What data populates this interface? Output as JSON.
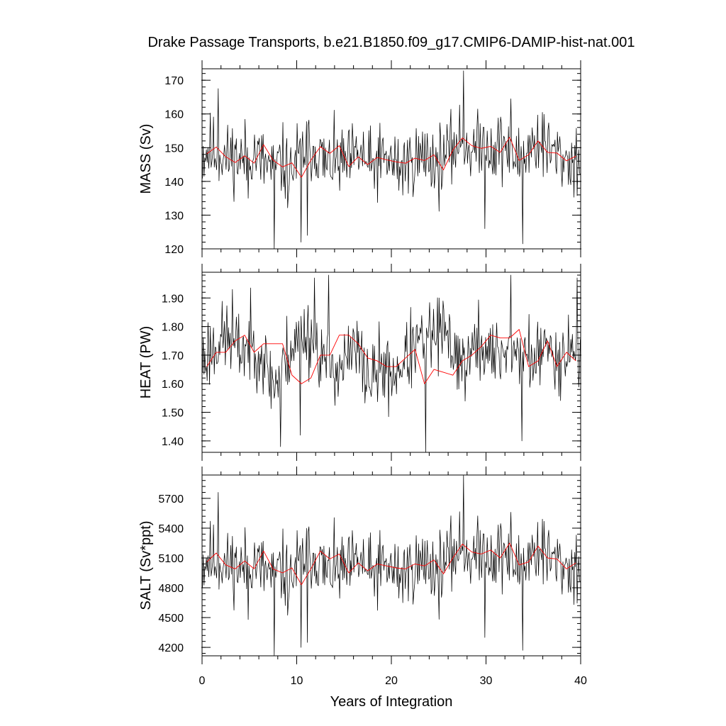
{
  "title": "Drake Passage Transports, b.e21.B1850.f09_g17.CMIP6-DAMIP-hist-nat.001",
  "colors": {
    "monthly": "#000000",
    "annual": "#ff0000"
  },
  "chart_data": [
    {
      "type": "line",
      "ylabel": "MASS (Sv)",
      "xlabel": "",
      "xlim": [
        0,
        40
      ],
      "ylim": [
        120,
        173.4
      ],
      "yticks": [
        120,
        130,
        140,
        150,
        160,
        170
      ],
      "ytick_labels": [
        "120",
        "130",
        "140",
        "150",
        "160",
        "170"
      ],
      "xticks": [
        0,
        10,
        20,
        30,
        40
      ],
      "xtick_labels": [],
      "grid": false,
      "series": [
        {
          "role": "monthly",
          "seed": 11,
          "x_start": 0.04,
          "x_end": 39.96,
          "count": 480,
          "mean": 147.5,
          "amp": 7,
          "annual": [
            147.5,
            148.8,
            149.5,
            149,
            148.2,
            147.3,
            146.8,
            147.8,
            147.1,
            146.5,
            146.9,
            147.6,
            148.3,
            148.1,
            146.2,
            145.5,
            144.5,
            144.2,
            145.0,
            145.8,
            144.2,
            141.2,
            145.0,
            146.8,
            148.1,
            150.5,
            150.2,
            149.3,
            148.3,
            146.5,
            144.2,
            145.7,
            146.4,
            145.1,
            145.6,
            145.6,
            146.8,
            147.3,
            148.2,
            146.6,
            145.3,
            144.1,
            145.9,
            146.3,
            146.8,
            146.0,
            145.4,
            144.5,
            144.1,
            146.5,
            145.3,
            147.0,
            146.3,
            147.4,
            148.2,
            147.0,
            145.0,
            144.2,
            147.4,
            148.1,
            149.6,
            151.0,
            152.0,
            150.8,
            150.1,
            149.6,
            150.0,
            150.2,
            151.0,
            150.5,
            148.7,
            150.3,
            151.6,
            150.5,
            148.6,
            147.5,
            146.3,
            147.0,
            148.6,
            150.1,
            150.9,
            152.4,
            151.1,
            149.8,
            148.4,
            148.5,
            147.1,
            147.0,
            146.3,
            145.5,
            146.1,
            147.0
          ],
          "spikes": [
            [
              20,
              167.5
            ],
            [
              91,
              120
            ],
            [
              125,
              122
            ],
            [
              133,
              124
            ],
            [
              331,
              172.8
            ],
            [
              358,
              126
            ],
            [
              406,
              121.5
            ],
            [
              391,
              164.5
            ],
            [
              58,
              135
            ]
          ]
        },
        {
          "role": "annual",
          "name": "",
          "x": [
            0.5,
            1.5,
            2.5,
            3.5,
            4.5,
            5.5,
            6.5,
            7.5,
            8.5,
            9.5,
            10.5,
            11.5,
            12.5,
            13.5,
            14.5,
            15.5,
            16.5,
            17.5,
            18.5,
            19.5,
            20.5,
            21.5,
            22.5,
            23.5,
            24.5,
            25.5,
            26.5,
            27.5,
            28.5,
            29.5,
            30.5,
            31.5,
            32.5,
            33.5,
            34.5,
            35.5,
            36.5,
            37.5,
            38.5,
            39.5
          ],
          "y": [
            148.2,
            150.2,
            147.3,
            145.6,
            147.6,
            145.4,
            150.9,
            146.3,
            144.3,
            145.5,
            141.2,
            146.3,
            150.3,
            148.3,
            150.6,
            144.4,
            147.3,
            145.0,
            147.1,
            146.4,
            145.8,
            145.4,
            146.9,
            146.2,
            147.9,
            143.4,
            149.3,
            152.9,
            150.6,
            149.8,
            150.4,
            148.6,
            153.1,
            146.2,
            147.9,
            152.0,
            148.6,
            148.4,
            146.1,
            147.5
          ]
        }
      ]
    },
    {
      "type": "line",
      "ylabel": "HEAT (PW)",
      "xlabel": "",
      "xlim": [
        0,
        40
      ],
      "ylim": [
        1.36,
        1.99
      ],
      "yticks": [
        1.4,
        1.5,
        1.6,
        1.7,
        1.8,
        1.9
      ],
      "ytick_labels": [
        "1.40",
        "1.50",
        "1.60",
        "1.70",
        "1.80",
        "1.90"
      ],
      "xticks": [
        0,
        10,
        20,
        30,
        40
      ],
      "xtick_labels": [],
      "grid": false,
      "series": [
        {
          "role": "monthly",
          "seed": 23,
          "x_start": 0.04,
          "x_end": 39.96,
          "count": 480,
          "mean": 1.7,
          "amp": 0.085,
          "annual": [
            1.68,
            1.7,
            1.72,
            1.73,
            1.75,
            1.76,
            1.77,
            1.74,
            1.73,
            1.72,
            1.73,
            1.74,
            1.73,
            1.72,
            1.7,
            1.66,
            1.62,
            1.6,
            1.62,
            1.66,
            1.7,
            1.72,
            1.74,
            1.77,
            1.78,
            1.77,
            1.75,
            1.72,
            1.69,
            1.68,
            1.67,
            1.66,
            1.65,
            1.66,
            1.68,
            1.7,
            1.72,
            1.7,
            1.66,
            1.62,
            1.61,
            1.64,
            1.66,
            1.65,
            1.64,
            1.63,
            1.65,
            1.67,
            1.69,
            1.71,
            1.73,
            1.74,
            1.75,
            1.76,
            1.77,
            1.77,
            1.78,
            1.77,
            1.75,
            1.73,
            1.7,
            1.68,
            1.67,
            1.69,
            1.72,
            1.74,
            1.73,
            1.71,
            1.7,
            1.69,
            1.7,
            1.72,
            1.73,
            1.71,
            1.69,
            1.7,
            1.71,
            1.7,
            1.68,
            1.69,
            1.71,
            1.73,
            1.72,
            1.7,
            1.69,
            1.7,
            1.72,
            1.73,
            1.71,
            1.7
          ],
          "spikes": [
            [
              99,
              1.38
            ],
            [
              124,
              1.42
            ],
            [
              142,
              1.97
            ],
            [
              160,
              1.98
            ],
            [
              283,
              1.36
            ],
            [
              405,
              1.4
            ],
            [
              391,
              1.98
            ],
            [
              475,
              1.97
            ],
            [
              38,
              1.93
            ]
          ]
        },
        {
          "role": "annual",
          "name": "",
          "x": [
            0.5,
            1.5,
            2.5,
            3.5,
            4.5,
            5.5,
            6.5,
            7.5,
            8.5,
            9.5,
            10.5,
            11.5,
            12.5,
            13.5,
            14.5,
            15.5,
            16.5,
            17.5,
            18.5,
            19.5,
            20.5,
            21.5,
            22.5,
            23.5,
            24.5,
            25.5,
            26.5,
            27.5,
            28.5,
            29.5,
            30.5,
            31.5,
            32.5,
            33.5,
            34.5,
            35.5,
            36.5,
            37.5,
            38.5,
            39.5
          ],
          "y": [
            1.66,
            1.71,
            1.71,
            1.75,
            1.77,
            1.71,
            1.74,
            1.74,
            1.74,
            1.63,
            1.6,
            1.62,
            1.7,
            1.7,
            1.77,
            1.77,
            1.74,
            1.69,
            1.68,
            1.66,
            1.66,
            1.69,
            1.72,
            1.6,
            1.65,
            1.64,
            1.63,
            1.68,
            1.7,
            1.73,
            1.77,
            1.76,
            1.76,
            1.79,
            1.66,
            1.68,
            1.75,
            1.66,
            1.71,
            1.68
          ]
        }
      ]
    },
    {
      "type": "line",
      "ylabel": "SALT (Sv*ppt)",
      "xlabel": "Years of Integration",
      "xlim": [
        0,
        40
      ],
      "ylim": [
        4115,
        5935
      ],
      "yticks": [
        4200,
        4500,
        4800,
        5100,
        5400,
        5700
      ],
      "ytick_labels": [
        "4200",
        "4500",
        "4800",
        "5100",
        "5400",
        "5700"
      ],
      "xticks": [
        0,
        10,
        20,
        30,
        40
      ],
      "xtick_labels": [
        "0",
        "10",
        "20",
        "30",
        "40"
      ],
      "grid": false,
      "series": [
        {
          "role": "monthly",
          "seed": 11,
          "x_start": 0.04,
          "x_end": 39.96,
          "count": 480,
          "mean": 5050,
          "amp": 240,
          "annual": [
            5030,
            5080,
            5100,
            5090,
            5060,
            5030,
            5010,
            5050,
            5020,
            5000,
            5010,
            5040,
            5060,
            5060,
            5000,
            4980,
            4940,
            4930,
            4960,
            4990,
            4940,
            4830,
            4960,
            5020,
            5070,
            5150,
            5140,
            5110,
            5070,
            5010,
            4930,
            4980,
            5000,
            4960,
            4980,
            4980,
            5020,
            5040,
            5070,
            5010,
            4970,
            4930,
            4990,
            5000,
            5020,
            4990,
            4970,
            4940,
            4930,
            5010,
            4970,
            5030,
            5000,
            5040,
            5070,
            5030,
            4960,
            4930,
            5040,
            5070,
            5120,
            5170,
            5200,
            5160,
            5130,
            5120,
            5130,
            5140,
            5170,
            5150,
            5090,
            5140,
            5190,
            5150,
            5080,
            5040,
            5000,
            5030,
            5080,
            5130,
            5160,
            5210,
            5170,
            5120,
            5070,
            5080,
            5030,
            5030,
            5000,
            4980,
            5000,
            5030
          ],
          "spikes": [
            [
              20,
              5760
            ],
            [
              91,
              4120
            ],
            [
              125,
              4200
            ],
            [
              133,
              4250
            ],
            [
              331,
              5930
            ],
            [
              358,
              4300
            ],
            [
              406,
              4170
            ],
            [
              391,
              5560
            ],
            [
              58,
              4480
            ]
          ]
        },
        {
          "role": "annual",
          "name": "",
          "x": [
            0.5,
            1.5,
            2.5,
            3.5,
            4.5,
            5.5,
            6.5,
            7.5,
            8.5,
            9.5,
            10.5,
            11.5,
            12.5,
            13.5,
            14.5,
            15.5,
            16.5,
            17.5,
            18.5,
            19.5,
            20.5,
            21.5,
            22.5,
            23.5,
            24.5,
            25.5,
            26.5,
            27.5,
            28.5,
            29.5,
            30.5,
            31.5,
            32.5,
            33.5,
            34.5,
            35.5,
            36.5,
            37.5,
            38.5,
            39.5
          ],
          "y": [
            5060,
            5150,
            5030,
            4990,
            5070,
            4990,
            5170,
            4990,
            4950,
            5000,
            4830,
            4990,
            5170,
            5090,
            5140,
            4950,
            5050,
            4970,
            5040,
            5020,
            5000,
            4990,
            5040,
            5020,
            5080,
            4940,
            5100,
            5240,
            5160,
            5140,
            5180,
            5100,
            5250,
            5030,
            5060,
            5220,
            5100,
            5090,
            4990,
            5050
          ]
        }
      ]
    }
  ]
}
